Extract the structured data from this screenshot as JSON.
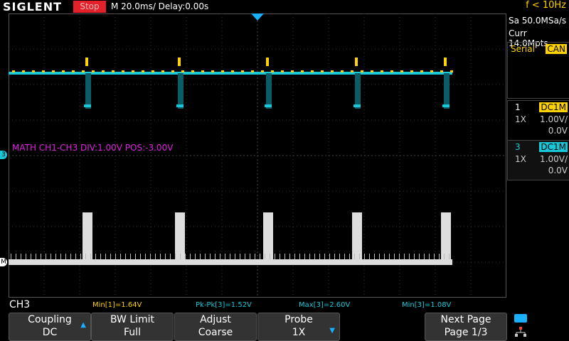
{
  "header": {
    "brand": "SIGLENT",
    "run_state": "Stop",
    "timebase": "M 20.0ms/ Delay:0.00s",
    "trigger_freq": "f < 10Hz",
    "sample_rate": "Sa 50.0MSa/s",
    "memory_depth": "Curr 14.0Mpts"
  },
  "sidepanel": {
    "serial": {
      "label": "Serial",
      "protocol": "CAN"
    },
    "channels": [
      {
        "num": "1",
        "coupling": "DC1M",
        "probe": "1X",
        "scale": "1.00V/",
        "offset": "0.0V",
        "color": "#ffd200"
      },
      {
        "num": "3",
        "coupling": "DC1M",
        "probe": "1X",
        "scale": "1.00V/",
        "offset": "0.0V",
        "color": "#19c8d8"
      }
    ]
  },
  "math": {
    "label": "MATH  CH1-CH3  DIV:1.00V  POS:-3.00V"
  },
  "markers": {
    "ch3": "3",
    "math": "M"
  },
  "measurements": {
    "channel": "CH3",
    "items": [
      {
        "text": "Min[1]=1.64V",
        "color": "#ffd200"
      },
      {
        "text": "Pk-Pk[3]=1.52V",
        "color": "#19c8d8"
      },
      {
        "text": "Max[3]=2.60V",
        "color": "#19c8d8"
      },
      {
        "text": "Min[3]=1.08V",
        "color": "#19c8d8"
      }
    ]
  },
  "softkeys": [
    {
      "line1": "Coupling",
      "line2": "DC",
      "arrow": "up"
    },
    {
      "line1": "BW Limit",
      "line2": "Full",
      "arrow": ""
    },
    {
      "line1": "Adjust",
      "line2": "Coarse",
      "arrow": ""
    },
    {
      "line1": "Probe",
      "line2": "1X",
      "arrow": "down"
    },
    {
      "line1": "Next Page",
      "line2": "Page 1/3",
      "arrow": ""
    }
  ],
  "icons": {
    "usb": "usb-icon",
    "network": "network-icon",
    "trigger": "trigger-position-icon"
  }
}
